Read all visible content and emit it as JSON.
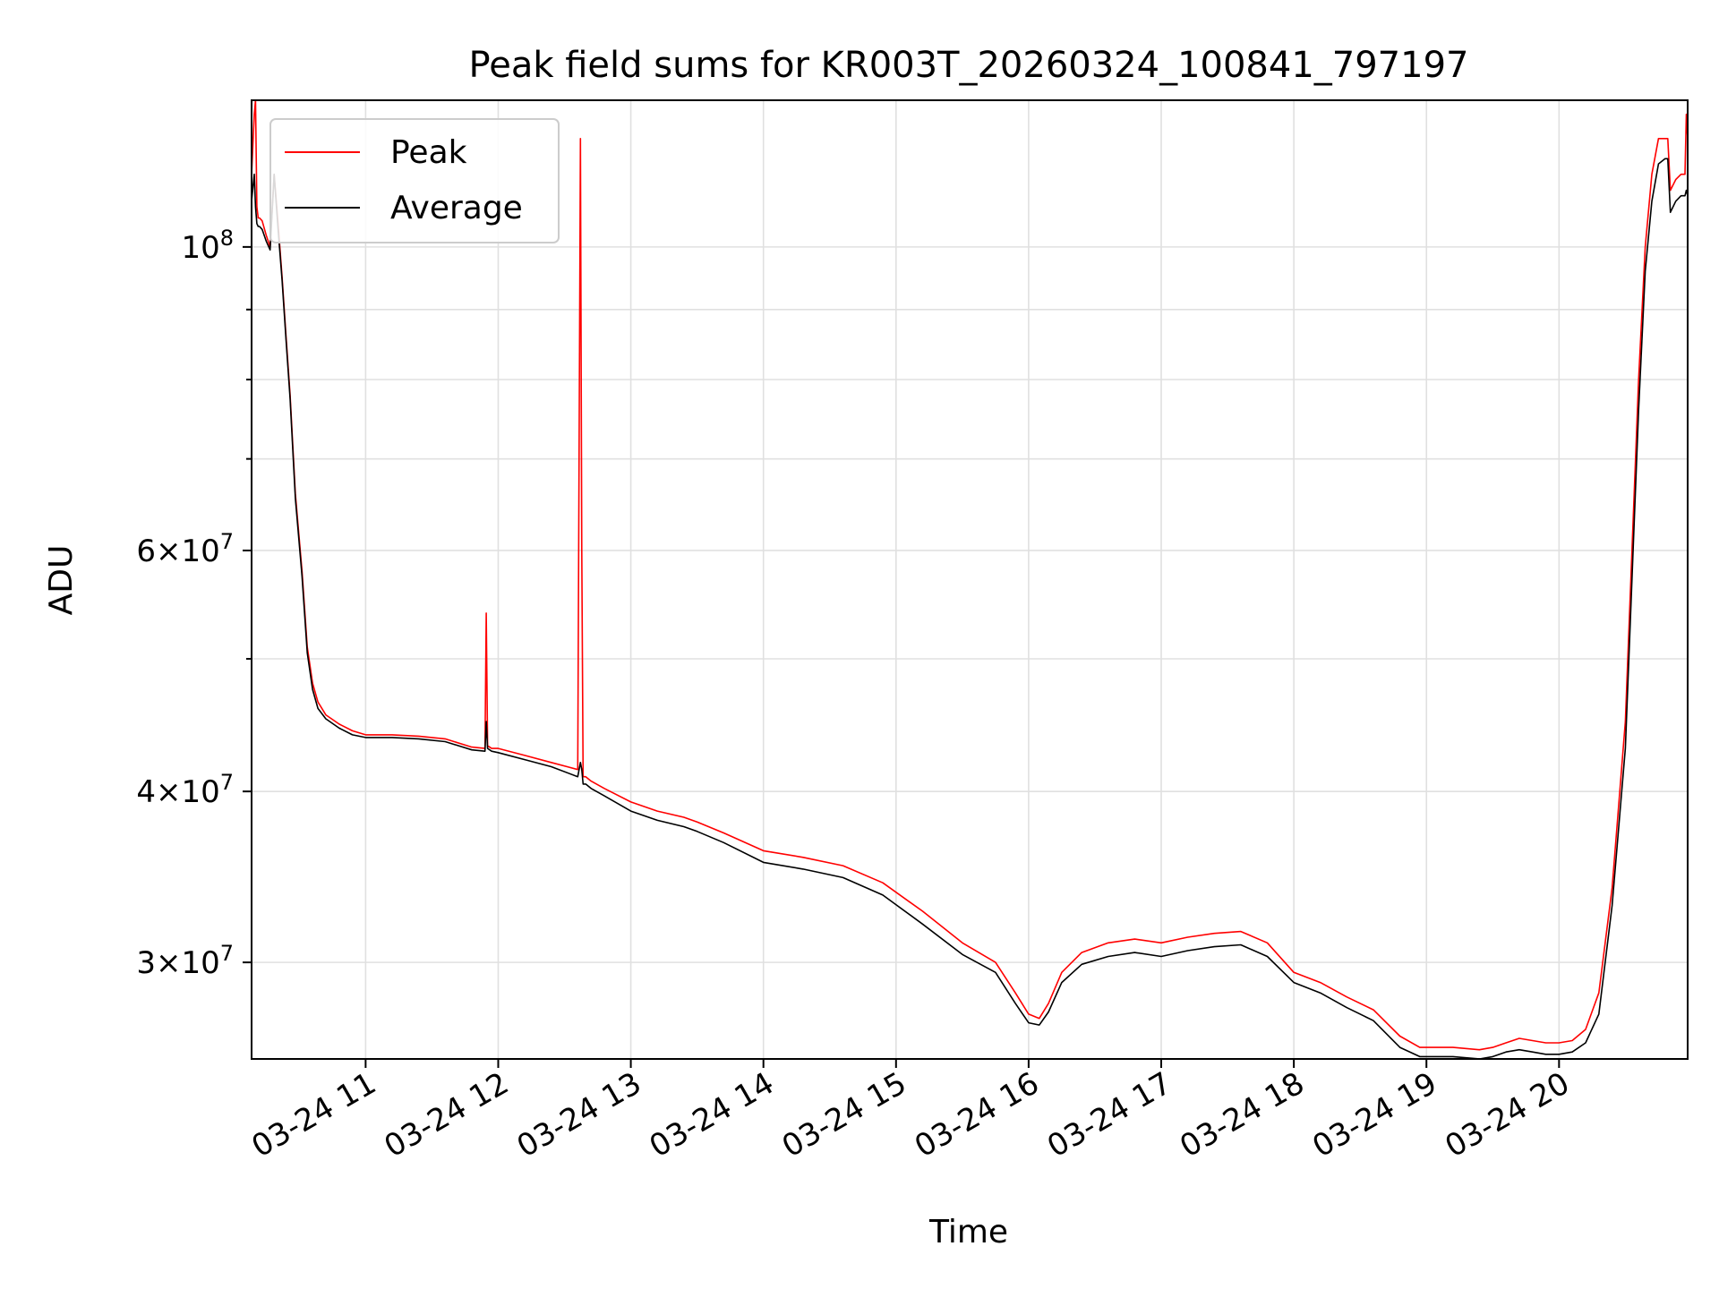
{
  "chart_data": {
    "type": "line",
    "title": "Peak field sums for KR003T_20260324_100841_797197",
    "xlabel": "Time",
    "ylabel": "ADU",
    "yscale": "log",
    "xlim": [
      10.14,
      20.97
    ],
    "ylim": [
      25500000,
      128000000
    ],
    "grid": true,
    "legend_loc": "top-left",
    "x_ticks": [
      {
        "value": 11,
        "label": "03-24 11"
      },
      {
        "value": 12,
        "label": "03-24 12"
      },
      {
        "value": 13,
        "label": "03-24 13"
      },
      {
        "value": 14,
        "label": "03-24 14"
      },
      {
        "value": 15,
        "label": "03-24 15"
      },
      {
        "value": 16,
        "label": "03-24 16"
      },
      {
        "value": 17,
        "label": "03-24 17"
      },
      {
        "value": 18,
        "label": "03-24 18"
      },
      {
        "value": 19,
        "label": "03-24 19"
      },
      {
        "value": 20,
        "label": "03-24 20"
      }
    ],
    "y_major_ticks": [
      {
        "value": 100000000,
        "mantissa": "",
        "exp": "8"
      },
      {
        "value": 60000000,
        "mantissa": "6",
        "exp": "7"
      },
      {
        "value": 40000000,
        "mantissa": "4",
        "exp": "7"
      },
      {
        "value": 30000000,
        "mantissa": "3",
        "exp": "7"
      }
    ],
    "y_minor_ticks": [
      90000000,
      80000000,
      70000000,
      50000000
    ],
    "series": [
      {
        "name": "Peak",
        "color": "#ff0000",
        "x": [
          10.14,
          10.16,
          10.17,
          10.18,
          10.19,
          10.2,
          10.22,
          10.25,
          10.28,
          10.31,
          10.34,
          10.37,
          10.4,
          10.43,
          10.47,
          10.52,
          10.56,
          10.6,
          10.64,
          10.7,
          10.8,
          10.9,
          11.0,
          11.2,
          11.4,
          11.6,
          11.8,
          11.9,
          11.91,
          11.92,
          11.95,
          12.0,
          12.2,
          12.4,
          12.6,
          12.62,
          12.63,
          12.64,
          12.66,
          12.7,
          12.8,
          13.0,
          13.2,
          13.4,
          13.5,
          13.7,
          14.0,
          14.3,
          14.6,
          14.9,
          15.2,
          15.5,
          15.75,
          15.9,
          16.0,
          16.08,
          16.15,
          16.25,
          16.4,
          16.6,
          16.8,
          17.0,
          17.2,
          17.4,
          17.6,
          17.8,
          18.0,
          18.2,
          18.4,
          18.6,
          18.8,
          18.95,
          19.05,
          19.2,
          19.4,
          19.5,
          19.6,
          19.7,
          19.8,
          19.9,
          20.0,
          20.1,
          20.2,
          20.3,
          20.4,
          20.5,
          20.6,
          20.65,
          20.7,
          20.75,
          20.8,
          20.82,
          20.84,
          20.88,
          20.92,
          20.95,
          20.96,
          20.97
        ],
        "values": [
          113000000,
          125000000,
          128000000,
          107000000,
          105000000,
          105000000,
          104500000,
          102000000,
          100000000,
          113000000,
          104000000,
          95000000,
          86000000,
          78000000,
          66000000,
          58000000,
          51000000,
          48000000,
          46500000,
          45500000,
          44800000,
          44300000,
          44000000,
          44000000,
          43900000,
          43700000,
          43100000,
          43000000,
          54000000,
          43200000,
          43000000,
          43000000,
          42500000,
          42000000,
          41500000,
          120000000,
          60000000,
          41000000,
          41000000,
          40700000,
          40200000,
          39300000,
          38700000,
          38300000,
          38000000,
          37300000,
          36200000,
          35800000,
          35300000,
          34300000,
          32700000,
          31000000,
          30000000,
          28500000,
          27500000,
          27300000,
          28000000,
          29500000,
          30500000,
          31000000,
          31200000,
          31000000,
          31300000,
          31500000,
          31600000,
          31000000,
          29500000,
          29000000,
          28300000,
          27700000,
          26500000,
          26000000,
          26000000,
          26000000,
          25900000,
          26000000,
          26200000,
          26400000,
          26300000,
          26200000,
          26200000,
          26300000,
          26800000,
          28500000,
          34000000,
          45000000,
          80000000,
          100000000,
          113000000,
          120000000,
          120000000,
          120000000,
          110000000,
          112000000,
          113000000,
          113000000,
          125000000,
          120000000
        ]
      },
      {
        "name": "Average",
        "color": "#000000",
        "x": [
          10.14,
          10.16,
          10.17,
          10.18,
          10.19,
          10.2,
          10.22,
          10.25,
          10.28,
          10.31,
          10.34,
          10.37,
          10.4,
          10.43,
          10.47,
          10.52,
          10.56,
          10.6,
          10.64,
          10.7,
          10.8,
          10.9,
          11.0,
          11.2,
          11.4,
          11.6,
          11.8,
          11.9,
          11.91,
          11.92,
          11.95,
          12.0,
          12.2,
          12.4,
          12.6,
          12.62,
          12.63,
          12.64,
          12.66,
          12.7,
          12.8,
          13.0,
          13.2,
          13.4,
          13.5,
          13.7,
          14.0,
          14.3,
          14.6,
          14.9,
          15.2,
          15.5,
          15.75,
          15.9,
          16.0,
          16.08,
          16.15,
          16.25,
          16.4,
          16.6,
          16.8,
          17.0,
          17.2,
          17.4,
          17.6,
          17.8,
          18.0,
          18.2,
          18.4,
          18.6,
          18.8,
          18.95,
          19.05,
          19.2,
          19.4,
          19.5,
          19.6,
          19.7,
          19.8,
          19.9,
          20.0,
          20.1,
          20.2,
          20.3,
          20.4,
          20.5,
          20.6,
          20.65,
          20.7,
          20.75,
          20.8,
          20.82,
          20.84,
          20.88,
          20.92,
          20.95,
          20.96,
          20.97
        ],
        "values": [
          108000000,
          113000000,
          107000000,
          104000000,
          103500000,
          103500000,
          103000000,
          101000000,
          99500000,
          113000000,
          103000000,
          94500000,
          85500000,
          77500000,
          65500000,
          57500000,
          50500000,
          47500000,
          46000000,
          45200000,
          44500000,
          44000000,
          43800000,
          43800000,
          43700000,
          43500000,
          42900000,
          42800000,
          45000000,
          43000000,
          42800000,
          42700000,
          42200000,
          41700000,
          41000000,
          42000000,
          41500000,
          40500000,
          40500000,
          40200000,
          39700000,
          38700000,
          38100000,
          37700000,
          37400000,
          36700000,
          35500000,
          35100000,
          34600000,
          33600000,
          32000000,
          30400000,
          29500000,
          28000000,
          27100000,
          27000000,
          27600000,
          29000000,
          29900000,
          30300000,
          30500000,
          30300000,
          30600000,
          30800000,
          30900000,
          30300000,
          29000000,
          28500000,
          27800000,
          27200000,
          26000000,
          25600000,
          25600000,
          25600000,
          25500000,
          25600000,
          25800000,
          25900000,
          25800000,
          25700000,
          25700000,
          25800000,
          26200000,
          27500000,
          33000000,
          43000000,
          76000000,
          96000000,
          108000000,
          115000000,
          116000000,
          116000000,
          106000000,
          108000000,
          109000000,
          109000000,
          110000000,
          109000000
        ]
      }
    ]
  }
}
